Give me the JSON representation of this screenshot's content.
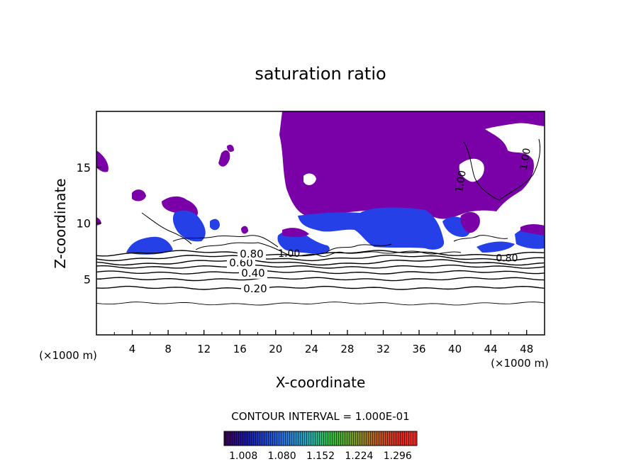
{
  "chart_data": {
    "type": "heatmap",
    "title": "saturation ratio",
    "xlabel": "X-coordinate",
    "ylabel": "Z-coordinate",
    "x_unit": "(×1000 m)",
    "x_unit_right": "(×1000 m)",
    "xlim": [
      0,
      50
    ],
    "ylim": [
      0,
      20
    ],
    "x_ticks": [
      "4",
      "8",
      "12",
      "16",
      "20",
      "24",
      "28",
      "32",
      "36",
      "40",
      "44",
      "48"
    ],
    "y_ticks": [
      "5",
      "10",
      "15"
    ],
    "contour_interval_text": "CONTOUR INTERVAL = 1.000E-01",
    "contour_lines": [
      {
        "level": 0.1,
        "z": 2.8,
        "label": ""
      },
      {
        "level": 0.2,
        "z": 4.2,
        "label": "0.20"
      },
      {
        "level": 0.3,
        "z": 5.0,
        "label": ""
      },
      {
        "level": 0.4,
        "z": 5.6,
        "label": "0.40"
      },
      {
        "level": 0.5,
        "z": 6.1,
        "label": ""
      },
      {
        "level": 0.6,
        "z": 6.5,
        "label": "0.60"
      },
      {
        "level": 0.7,
        "z": 6.9,
        "label": ""
      },
      {
        "level": 0.8,
        "z": 7.3,
        "label": "0.80"
      }
    ],
    "extra_labels": [
      {
        "text": "1.00",
        "x": 21.5,
        "z": 7.3
      },
      {
        "text": "0.80",
        "x": 45.8,
        "z": 6.9
      },
      {
        "text": "1.00",
        "x": 48.2,
        "z": 16.0
      },
      {
        "text": "1.00",
        "x": 41.0,
        "z": 14.0
      }
    ],
    "colorbar": {
      "ticks": [
        "1.008",
        "1.080",
        "1.152",
        "1.224",
        "1.296"
      ],
      "min": 0.972,
      "max": 1.332
    }
  },
  "colors": {
    "background": "#ffffff",
    "supersaturated_fill": "#7a00a8",
    "blue_fill": "#2540e6",
    "contour": "#000000"
  }
}
